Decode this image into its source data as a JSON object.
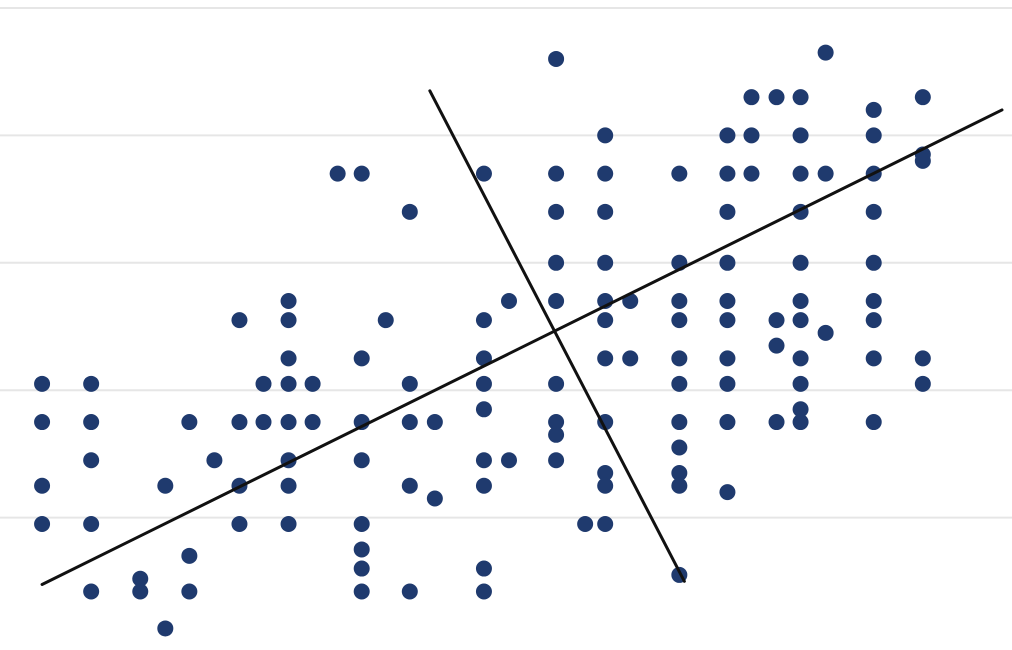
{
  "chart_data": {
    "type": "scatter",
    "title": "",
    "xlabel": "",
    "ylabel": "",
    "xlim": [
      0,
      100
    ],
    "ylim": [
      0,
      100
    ],
    "grid": true,
    "gridlines_y": [
      20,
      40,
      60,
      80,
      100
    ],
    "colors": {
      "point": "#1f3a6e",
      "line": "#111111",
      "grid": "#e6e6e6",
      "background": "#ffffff"
    },
    "series": [
      {
        "points": [
          [
            3.4,
            41
          ],
          [
            3.4,
            35
          ],
          [
            3.4,
            25
          ],
          [
            3.4,
            19
          ],
          [
            8.3,
            35
          ],
          [
            8.3,
            41
          ],
          [
            8.3,
            29
          ],
          [
            8.3,
            19
          ],
          [
            8.3,
            8.4
          ],
          [
            13.2,
            10.4
          ],
          [
            13.2,
            8.4
          ],
          [
            15.7,
            25
          ],
          [
            15.7,
            2.6
          ],
          [
            18.1,
            35
          ],
          [
            18.1,
            14
          ],
          [
            18.1,
            8.4
          ],
          [
            20.6,
            29
          ],
          [
            23.1,
            51
          ],
          [
            23.1,
            35
          ],
          [
            23.1,
            25
          ],
          [
            23.1,
            19
          ],
          [
            25.5,
            41
          ],
          [
            25.5,
            35
          ],
          [
            28,
            54
          ],
          [
            28,
            51
          ],
          [
            28,
            45
          ],
          [
            28,
            41
          ],
          [
            28,
            35
          ],
          [
            28,
            29
          ],
          [
            28,
            25
          ],
          [
            28,
            19
          ],
          [
            30.4,
            41
          ],
          [
            30.4,
            35
          ],
          [
            32.9,
            74
          ],
          [
            35.3,
            74
          ],
          [
            35.3,
            45
          ],
          [
            35.3,
            35
          ],
          [
            35.3,
            29
          ],
          [
            35.3,
            19
          ],
          [
            35.3,
            15
          ],
          [
            35.3,
            12
          ],
          [
            35.3,
            8.4
          ],
          [
            37.7,
            51
          ],
          [
            40.1,
            68
          ],
          [
            40.1,
            41
          ],
          [
            40.1,
            35
          ],
          [
            40.1,
            25
          ],
          [
            40.1,
            8.4
          ],
          [
            42.6,
            35
          ],
          [
            42.6,
            23
          ],
          [
            47.5,
            74
          ],
          [
            47.5,
            51
          ],
          [
            47.5,
            45
          ],
          [
            47.5,
            41
          ],
          [
            47.5,
            37
          ],
          [
            47.5,
            29
          ],
          [
            47.5,
            25
          ],
          [
            47.5,
            12
          ],
          [
            47.5,
            8.4
          ],
          [
            50,
            54
          ],
          [
            50,
            29
          ],
          [
            54.7,
            92
          ],
          [
            54.7,
            74
          ],
          [
            54.7,
            68
          ],
          [
            54.7,
            60
          ],
          [
            54.7,
            54
          ],
          [
            54.7,
            41
          ],
          [
            54.7,
            35
          ],
          [
            54.7,
            33
          ],
          [
            54.7,
            29
          ],
          [
            57.6,
            19
          ],
          [
            59.6,
            80
          ],
          [
            59.6,
            74
          ],
          [
            59.6,
            68
          ],
          [
            59.6,
            60
          ],
          [
            59.6,
            54
          ],
          [
            59.6,
            51
          ],
          [
            59.6,
            45
          ],
          [
            59.6,
            35
          ],
          [
            59.6,
            27
          ],
          [
            59.6,
            25
          ],
          [
            59.6,
            19
          ],
          [
            62.1,
            54
          ],
          [
            62.1,
            45
          ],
          [
            67,
            74
          ],
          [
            67,
            60
          ],
          [
            67,
            54
          ],
          [
            67,
            51
          ],
          [
            67,
            45
          ],
          [
            67,
            41
          ],
          [
            67,
            35
          ],
          [
            67,
            31
          ],
          [
            67,
            27
          ],
          [
            67,
            25
          ],
          [
            67,
            11
          ],
          [
            71.8,
            80
          ],
          [
            71.8,
            74
          ],
          [
            71.8,
            68
          ],
          [
            71.8,
            60
          ],
          [
            71.8,
            54
          ],
          [
            71.8,
            51
          ],
          [
            71.8,
            45
          ],
          [
            71.8,
            41
          ],
          [
            71.8,
            35
          ],
          [
            71.8,
            24
          ],
          [
            74.2,
            86
          ],
          [
            74.2,
            80
          ],
          [
            74.2,
            74
          ],
          [
            76.7,
            86
          ],
          [
            76.7,
            51
          ],
          [
            76.7,
            47
          ],
          [
            76.7,
            35
          ],
          [
            79.1,
            86
          ],
          [
            79.1,
            80
          ],
          [
            79.1,
            74
          ],
          [
            79.1,
            68
          ],
          [
            79.1,
            60
          ],
          [
            79.1,
            54
          ],
          [
            79.1,
            51
          ],
          [
            79.1,
            45
          ],
          [
            79.1,
            41
          ],
          [
            79.1,
            37
          ],
          [
            79.1,
            35
          ],
          [
            81.6,
            93
          ],
          [
            81.6,
            74
          ],
          [
            81.6,
            49
          ],
          [
            86.4,
            84
          ],
          [
            86.4,
            80
          ],
          [
            86.4,
            74
          ],
          [
            86.4,
            68
          ],
          [
            86.4,
            60
          ],
          [
            86.4,
            54
          ],
          [
            86.4,
            51
          ],
          [
            86.4,
            45
          ],
          [
            86.4,
            35
          ],
          [
            91.3,
            86
          ],
          [
            91.3,
            77
          ],
          [
            91.3,
            76
          ],
          [
            91.3,
            45
          ],
          [
            91.3,
            41
          ]
        ]
      }
    ],
    "lines": [
      {
        "from": [
          3.4,
          9.5
        ],
        "to": [
          99.2,
          84
        ]
      },
      {
        "from": [
          42.1,
          87
        ],
        "to": [
          67.5,
          10
        ]
      }
    ]
  }
}
